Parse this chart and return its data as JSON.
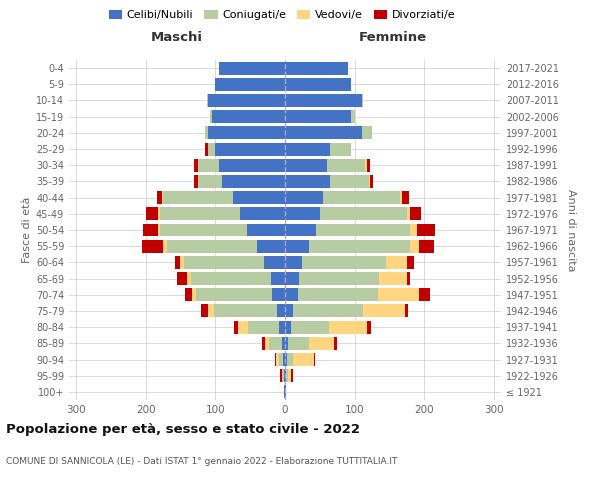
{
  "age_groups": [
    "100+",
    "95-99",
    "90-94",
    "85-89",
    "80-84",
    "75-79",
    "70-74",
    "65-69",
    "60-64",
    "55-59",
    "50-54",
    "45-49",
    "40-44",
    "35-39",
    "30-34",
    "25-29",
    "20-24",
    "15-19",
    "10-14",
    "5-9",
    "0-4"
  ],
  "birth_years": [
    "≤ 1921",
    "1922-1926",
    "1927-1931",
    "1932-1936",
    "1937-1941",
    "1942-1946",
    "1947-1951",
    "1952-1956",
    "1957-1961",
    "1962-1966",
    "1967-1971",
    "1972-1976",
    "1977-1981",
    "1982-1986",
    "1987-1991",
    "1992-1996",
    "1997-2001",
    "2002-2006",
    "2007-2011",
    "2012-2016",
    "2017-2021"
  ],
  "maschi": {
    "celibi": [
      1,
      2,
      3,
      5,
      8,
      12,
      18,
      20,
      30,
      40,
      55,
      65,
      75,
      90,
      95,
      100,
      110,
      105,
      110,
      100,
      95
    ],
    "coniugati": [
      0,
      2,
      5,
      18,
      45,
      90,
      110,
      115,
      115,
      130,
      125,
      115,
      100,
      35,
      30,
      10,
      5,
      2,
      2,
      0,
      0
    ],
    "vedovi": [
      0,
      1,
      5,
      5,
      15,
      8,
      5,
      5,
      5,
      5,
      2,
      2,
      1,
      0,
      0,
      0,
      0,
      0,
      0,
      0,
      0
    ],
    "divorziati": [
      0,
      2,
      2,
      5,
      5,
      10,
      10,
      15,
      8,
      30,
      22,
      18,
      8,
      5,
      5,
      5,
      0,
      0,
      0,
      0,
      0
    ]
  },
  "femmine": {
    "nubili": [
      1,
      2,
      3,
      5,
      8,
      12,
      18,
      20,
      25,
      35,
      45,
      50,
      55,
      65,
      60,
      65,
      110,
      95,
      110,
      95,
      90
    ],
    "coniugate": [
      0,
      2,
      8,
      30,
      55,
      100,
      115,
      115,
      120,
      145,
      135,
      125,
      110,
      55,
      55,
      30,
      15,
      5,
      2,
      0,
      0
    ],
    "vedove": [
      1,
      5,
      30,
      35,
      55,
      60,
      60,
      40,
      30,
      12,
      10,
      5,
      3,
      2,
      2,
      0,
      0,
      0,
      0,
      0,
      0
    ],
    "divorziate": [
      0,
      2,
      2,
      5,
      5,
      5,
      15,
      5,
      10,
      22,
      25,
      15,
      10,
      5,
      5,
      0,
      0,
      0,
      0,
      0,
      0
    ]
  },
  "colors": {
    "celibi": "#4472c4",
    "coniugati": "#b8cca4",
    "vedovi": "#ffd580",
    "divorziati": "#c00000"
  },
  "xlim": 310,
  "title": "Popolazione per età, sesso e stato civile - 2022",
  "subtitle": "COMUNE DI SANNICOLA (LE) - Dati ISTAT 1° gennaio 2022 - Elaborazione TUTTITALIA.IT",
  "xlabel_left": "Maschi",
  "xlabel_right": "Femmine",
  "ylabel_left": "Fasce di età",
  "ylabel_right": "Anni di nascita",
  "legend_labels": [
    "Celibi/Nubili",
    "Coniugati/e",
    "Vedovi/e",
    "Divorziati/e"
  ],
  "xticks": [
    -300,
    -200,
    -100,
    0,
    100,
    200,
    300
  ]
}
